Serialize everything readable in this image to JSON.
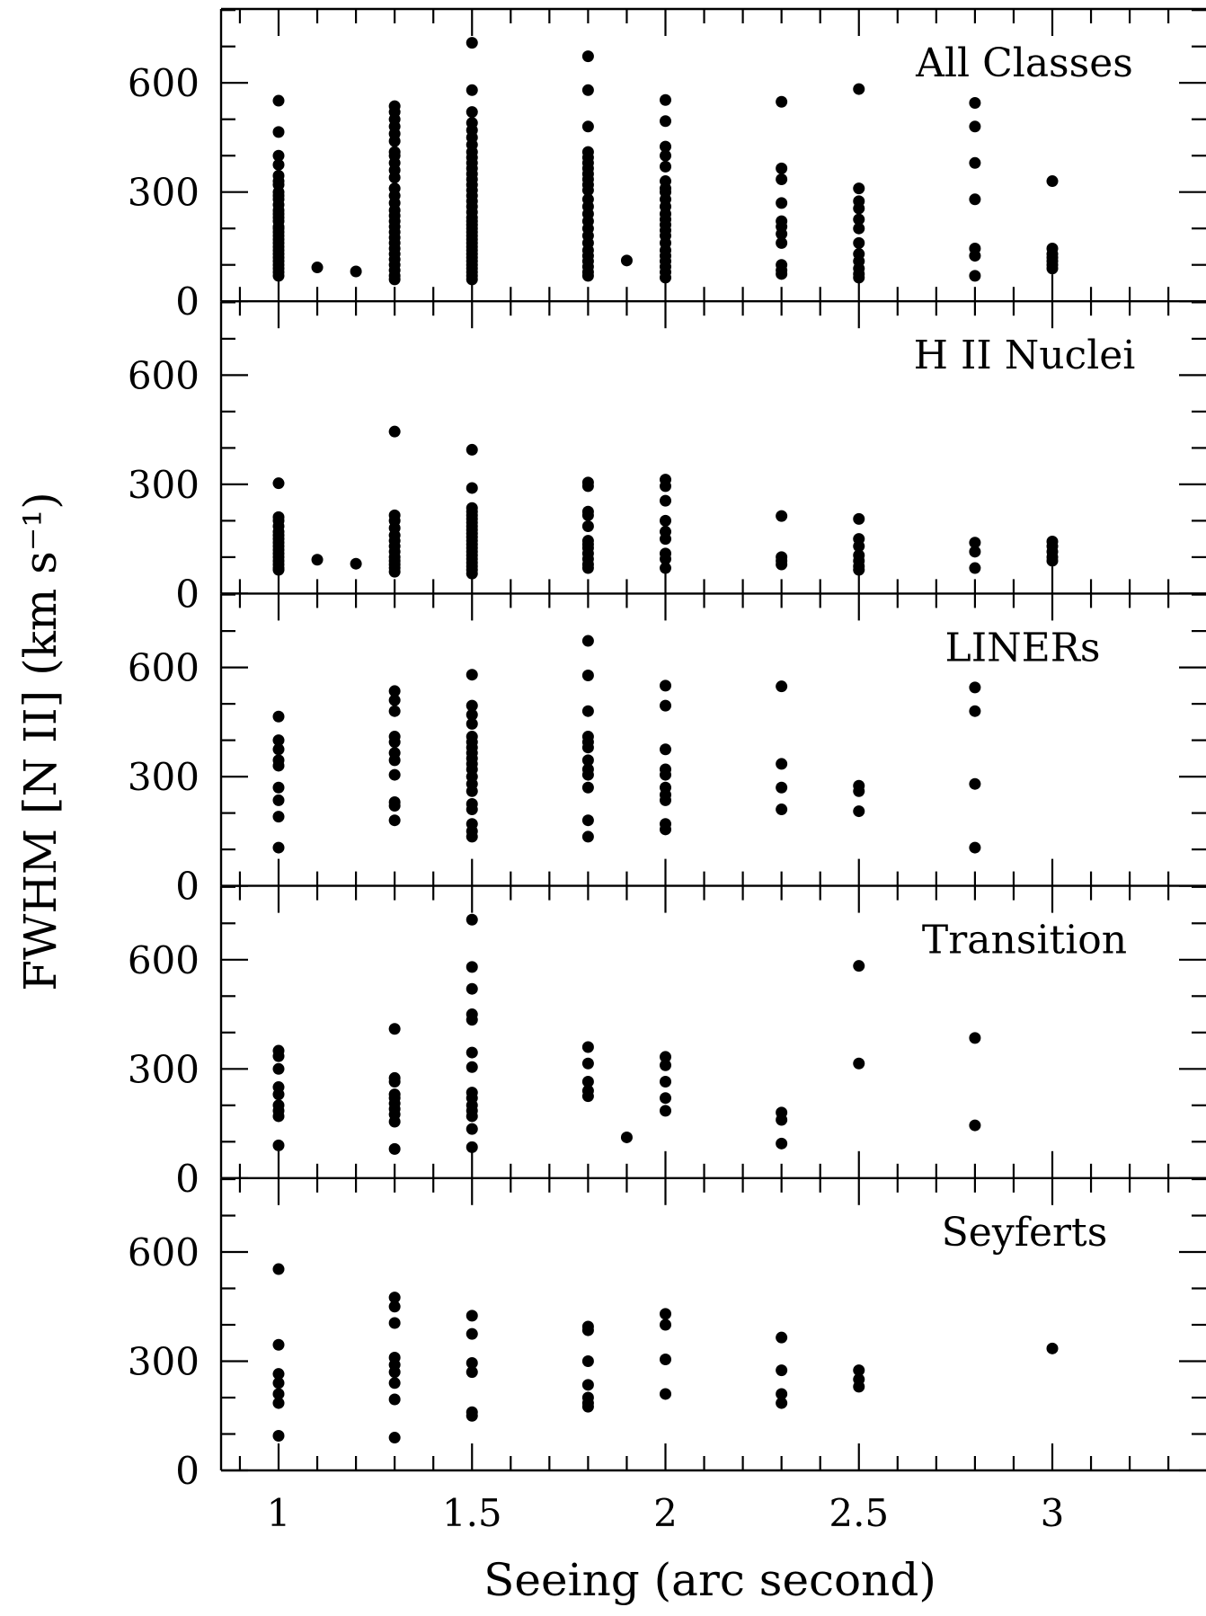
{
  "chart_data": {
    "type": "scatter",
    "xlabel": "Seeing (arc second)",
    "ylabel": "FWHM [N II] (km s⁻¹)",
    "xlim": [
      0.85,
      3.4
    ],
    "ylim": [
      0,
      800
    ],
    "x_ticks": [
      1,
      1.5,
      2,
      2.5,
      3
    ],
    "x_tick_labels": [
      "1",
      "1.5",
      "2",
      "2.5",
      "3"
    ],
    "y_ticks": [
      0,
      300,
      600
    ],
    "y_tick_labels": [
      "0",
      "300",
      "600"
    ],
    "grid": false,
    "legend": "none",
    "panels": [
      {
        "label": "All Classes",
        "points": [
          {
            "x": 1,
            "y": [
              551,
              465,
              400,
              375,
              345,
              330,
              320,
              300,
              290,
              280,
              265,
              250,
              240,
              230,
              220,
              205,
              200,
              190,
              180,
              170,
              160,
              150,
              140,
              130,
              120,
              110,
              100,
              90,
              80,
              70
            ]
          },
          {
            "x": 1.1,
            "y": [
              93
            ]
          },
          {
            "x": 1.2,
            "y": [
              82
            ]
          },
          {
            "x": 1.3,
            "y": [
              536,
              520,
              500,
              480,
              460,
              440,
              410,
              400,
              380,
              360,
              340,
              310,
              290,
              270,
              250,
              235,
              220,
              205,
              190,
              175,
              160,
              145,
              130,
              115,
              100,
              85,
              70,
              60
            ]
          },
          {
            "x": 1.5,
            "y": [
              710,
              580,
              520,
              490,
              470,
              450,
              430,
              410,
              395,
              380,
              365,
              350,
              335,
              320,
              305,
              290,
              275,
              260,
              245,
              230,
              220,
              210,
              200,
              190,
              180,
              170,
              160,
              150,
              140,
              130,
              120,
              110,
              100,
              90,
              80,
              70,
              60
            ]
          },
          {
            "x": 1.8,
            "y": [
              673,
              580,
              480,
              410,
              395,
              380,
              365,
              350,
              335,
              320,
              305,
              280,
              260,
              240,
              220,
              200,
              180,
              160,
              140,
              125,
              110,
              95,
              80,
              70
            ]
          },
          {
            "x": 1.9,
            "y": [
              112
            ]
          },
          {
            "x": 2,
            "y": [
              553,
              495,
              425,
              400,
              370,
              330,
              310,
              300,
              280,
              260,
              240,
              225,
              210,
              195,
              180,
              160,
              140,
              125,
              110,
              95,
              80,
              65
            ]
          },
          {
            "x": 2.3,
            "y": [
              548,
              365,
              335,
              270,
              220,
              205,
              185,
              160,
              100,
              85,
              75
            ]
          },
          {
            "x": 2.5,
            "y": [
              583,
              310,
              275,
              255,
              225,
              200,
              160,
              130,
              110,
              90,
              75,
              65
            ]
          },
          {
            "x": 2.8,
            "y": [
              545,
              480,
              380,
              280,
              145,
              125,
              70
            ]
          },
          {
            "x": 3,
            "y": [
              330,
              145,
              130,
              120,
              110,
              100,
              90
            ]
          }
        ]
      },
      {
        "label": "H II Nuclei",
        "points": [
          {
            "x": 1,
            "y": [
              303,
              210,
              200,
              185,
              170,
              160,
              150,
              140,
              130,
              120,
              110,
              100,
              90,
              80,
              70,
              65
            ]
          },
          {
            "x": 1.1,
            "y": [
              93
            ]
          },
          {
            "x": 1.2,
            "y": [
              82
            ]
          },
          {
            "x": 1.3,
            "y": [
              445,
              215,
              200,
              180,
              160,
              145,
              130,
              115,
              100,
              90,
              80,
              70,
              60
            ]
          },
          {
            "x": 1.5,
            "y": [
              395,
              290,
              235,
              225,
              215,
              205,
              195,
              185,
              175,
              165,
              155,
              145,
              135,
              125,
              115,
              105,
              95,
              85,
              75,
              65,
              55
            ]
          },
          {
            "x": 1.8,
            "y": [
              305,
              295,
              225,
              215,
              185,
              145,
              135,
              125,
              110,
              95,
              80,
              70
            ]
          },
          {
            "x": 2,
            "y": [
              313,
              295,
              255,
              200,
              170,
              150,
              110,
              95,
              70
            ]
          },
          {
            "x": 2.3,
            "y": [
              213,
              100,
              90,
              80
            ]
          },
          {
            "x": 2.5,
            "y": [
              205,
              150,
              130,
              105,
              90,
              75,
              65
            ]
          },
          {
            "x": 2.8,
            "y": [
              140,
              115,
              70
            ]
          },
          {
            "x": 3,
            "y": [
              143,
              130,
              115,
              100,
              90
            ]
          }
        ]
      },
      {
        "label": "LINERs",
        "points": [
          {
            "x": 1,
            "y": [
              465,
              400,
              375,
              345,
              330,
              270,
              235,
              190,
              105
            ]
          },
          {
            "x": 1.3,
            "y": [
              535,
              510,
              480,
              410,
              395,
              365,
              345,
              305,
              230,
              220,
              180
            ]
          },
          {
            "x": 1.5,
            "y": [
              580,
              495,
              470,
              445,
              410,
              395,
              380,
              365,
              350,
              335,
              320,
              300,
              280,
              260,
              225,
              210,
              170,
              150,
              135
            ]
          },
          {
            "x": 1.8,
            "y": [
              673,
              578,
              480,
              410,
              395,
              380,
              345,
              320,
              305,
              270,
              180,
              135
            ]
          },
          {
            "x": 2,
            "y": [
              550,
              495,
              375,
              320,
              305,
              270,
              250,
              235,
              170,
              155
            ]
          },
          {
            "x": 2.3,
            "y": [
              548,
              335,
              270,
              210
            ]
          },
          {
            "x": 2.5,
            "y": [
              275,
              260,
              205
            ]
          },
          {
            "x": 2.8,
            "y": [
              545,
              480,
              280,
              105
            ]
          }
        ]
      },
      {
        "label": "Transition",
        "points": [
          {
            "x": 1,
            "y": [
              350,
              335,
              300,
              250,
              230,
              200,
              185,
              170,
              90
            ]
          },
          {
            "x": 1.3,
            "y": [
              410,
              275,
              265,
              230,
              220,
              205,
              190,
              175,
              155,
              80
            ]
          },
          {
            "x": 1.5,
            "y": [
              710,
              580,
              520,
              450,
              435,
              345,
              305,
              235,
              220,
              200,
              185,
              170,
              135,
              85
            ]
          },
          {
            "x": 1.8,
            "y": [
              360,
              315,
              265,
              240,
              225
            ]
          },
          {
            "x": 1.9,
            "y": [
              112
            ]
          },
          {
            "x": 2,
            "y": [
              333,
              310,
              265,
              220,
              185
            ]
          },
          {
            "x": 2.3,
            "y": [
              180,
              160,
              95
            ]
          },
          {
            "x": 2.5,
            "y": [
              583,
              315
            ]
          },
          {
            "x": 2.8,
            "y": [
              385,
              145
            ]
          }
        ]
      },
      {
        "label": "Seyferts",
        "points": [
          {
            "x": 1,
            "y": [
              553,
              345,
              265,
              240,
              210,
              185,
              95
            ]
          },
          {
            "x": 1.3,
            "y": [
              475,
              450,
              405,
              310,
              290,
              270,
              240,
              195,
              90
            ]
          },
          {
            "x": 1.5,
            "y": [
              425,
              375,
              295,
              270,
              160,
              150
            ]
          },
          {
            "x": 1.8,
            "y": [
              395,
              385,
              300,
              235,
              200,
              185,
              175
            ]
          },
          {
            "x": 2,
            "y": [
              430,
              400,
              305,
              210
            ]
          },
          {
            "x": 2.3,
            "y": [
              365,
              275,
              210,
              185
            ]
          },
          {
            "x": 2.5,
            "y": [
              275,
              250,
              230
            ]
          },
          {
            "x": 3,
            "y": [
              335
            ]
          }
        ]
      }
    ]
  }
}
